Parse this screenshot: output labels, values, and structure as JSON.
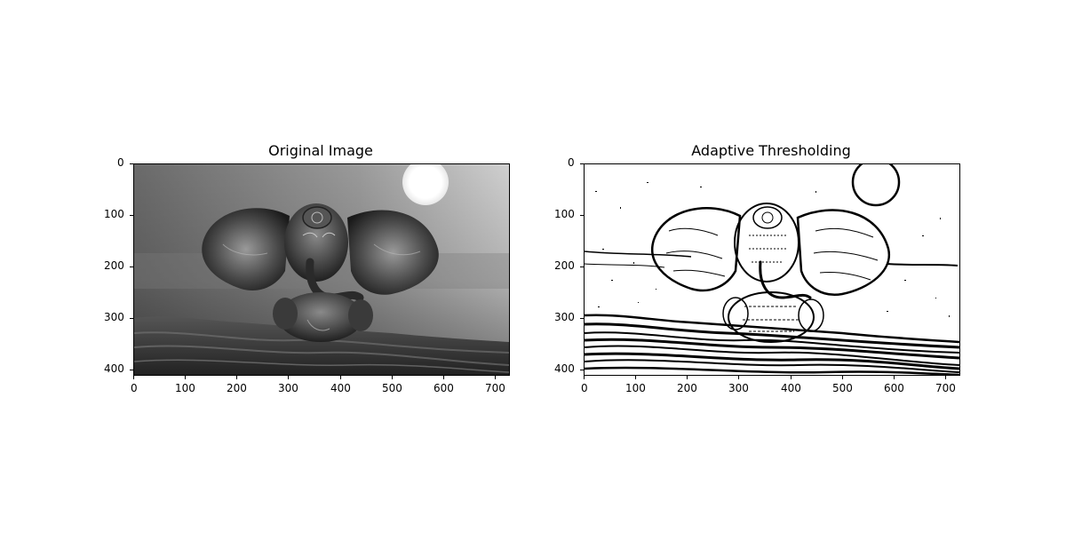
{
  "figure": {
    "panels": [
      {
        "title": "Original Image",
        "image_description_icon": "grayscale-elephant-statue-photo",
        "x_ticks": [
          "0",
          "100",
          "200",
          "300",
          "400",
          "500",
          "600",
          "700"
        ],
        "y_ticks": [
          "0",
          "100",
          "200",
          "300",
          "400"
        ],
        "x_range": [
          0,
          728
        ],
        "y_range": [
          0,
          410
        ]
      },
      {
        "title": "Adaptive Thresholding",
        "image_description_icon": "binary-thresholded-elephant-statue-photo",
        "x_ticks": [
          "0",
          "100",
          "200",
          "300",
          "400",
          "500",
          "600",
          "700"
        ],
        "y_ticks": [
          "0",
          "100",
          "200",
          "300",
          "400"
        ],
        "x_range": [
          0,
          728
        ],
        "y_range": [
          0,
          410
        ]
      }
    ]
  }
}
